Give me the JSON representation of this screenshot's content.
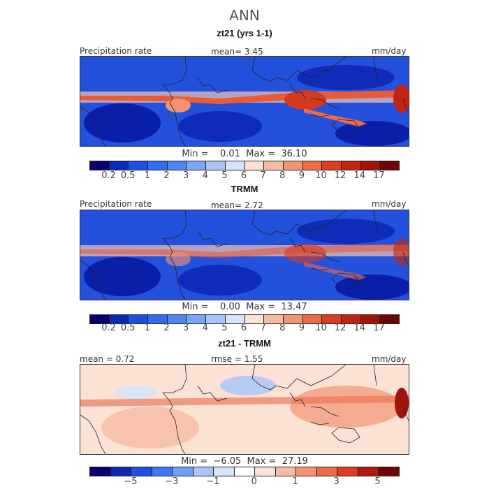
{
  "page": {
    "title": "ANN"
  },
  "panels": [
    {
      "title": "zt21 (yrs 1-1)",
      "left_label": "Precipitation rate",
      "center_label": "mean=    3.45",
      "right_label": "mm/day",
      "minmax": "Min =    0.01  Max =  36.10",
      "palette": "sequential",
      "intensity": 1.0
    },
    {
      "title": "TRMM",
      "left_label": "Precipitation rate",
      "center_label": "mean=    2.72",
      "right_label": "mm/day",
      "minmax": "Min =    0.00  Max =  13.47",
      "palette": "sequential",
      "intensity": 0.6
    },
    {
      "title": "zt21 - TRMM",
      "left_label": "mean =   0.72",
      "center_label": "rmse =    1.55",
      "right_label": "mm/day",
      "minmax": "Min =  −6.05  Max =  27.19",
      "palette": "difference",
      "intensity": 0.7
    }
  ],
  "colorbars": {
    "sequential": {
      "colors": [
        "#08006e",
        "#0b2ab4",
        "#1f4fe0",
        "#2f6cf0",
        "#4f86f4",
        "#7aa6f8",
        "#a8c6fb",
        "#d6e4fb",
        "#fbe2d4",
        "#f7bba3",
        "#f29474",
        "#eb6b4b",
        "#dc3c22",
        "#c22413",
        "#a01409",
        "#6e0606"
      ],
      "ticks": [
        "0.2",
        "0.5",
        "1",
        "2",
        "3",
        "4",
        "5",
        "6",
        "7",
        "8",
        "9",
        "10",
        "12",
        "14",
        "17"
      ]
    },
    "difference": {
      "colors": [
        "#08006e",
        "#0b2ab4",
        "#1f4fe0",
        "#3d78f2",
        "#6f9ef7",
        "#a8c6fb",
        "#d6e4fb",
        "#ffffff",
        "#fbe2d4",
        "#f7bba3",
        "#f29474",
        "#eb6b4b",
        "#dc3c22",
        "#b11a0e",
        "#6e0606"
      ],
      "ticks": [
        "−5",
        "−3",
        "−1",
        "0",
        "1",
        "3",
        "5"
      ]
    }
  }
}
